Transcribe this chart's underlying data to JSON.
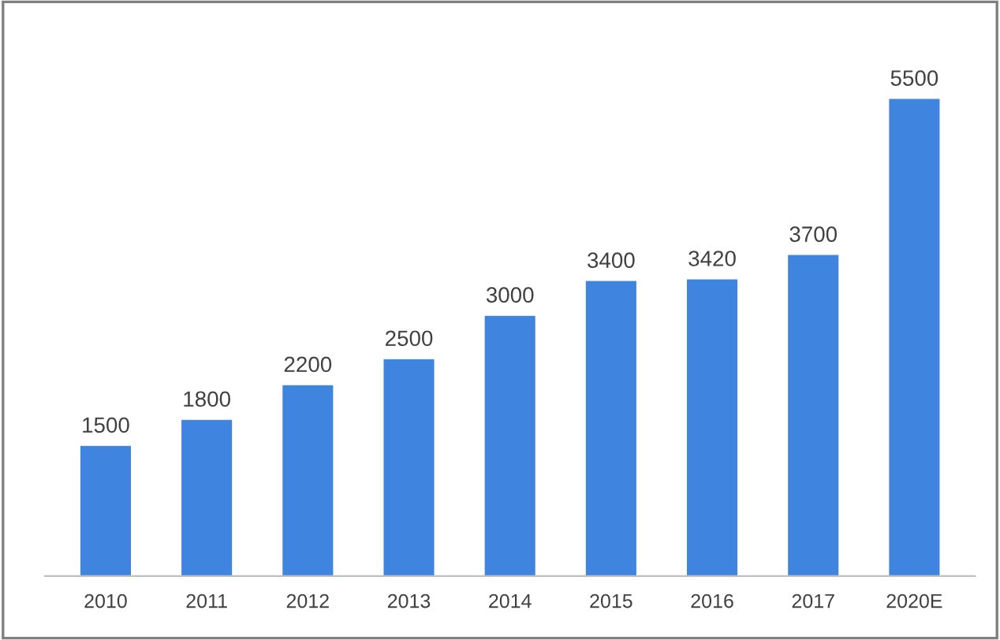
{
  "chart_data": {
    "type": "bar",
    "categories": [
      "2010",
      "2011",
      "2012",
      "2013",
      "2014",
      "2015",
      "2016",
      "2017",
      "2020E"
    ],
    "values": [
      1500,
      1800,
      2200,
      2500,
      3000,
      3400,
      3420,
      3700,
      5500
    ],
    "color": "#3f85e0",
    "data_labels": true,
    "grid": false,
    "tick_labels": "x"
  }
}
